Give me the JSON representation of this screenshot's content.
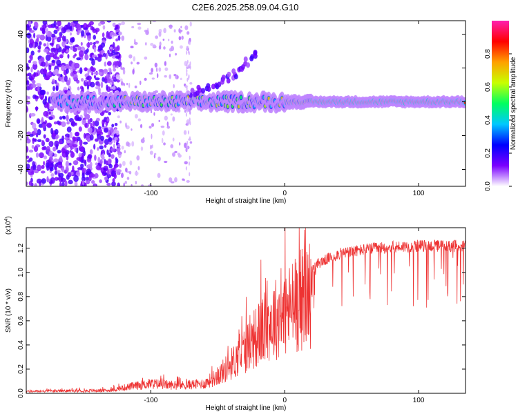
{
  "title": "C2E6.2025.258.09.04.G10",
  "charts": {
    "spectrogram": {
      "type": "heatmap",
      "xlabel": "Height of straight line (km)",
      "ylabel": "Frequency (Hz)",
      "xlim": [
        -193,
        135
      ],
      "ylim": [
        -50,
        48
      ],
      "xticks": [
        -100,
        0,
        100
      ],
      "yticks": [
        -40,
        -20,
        0,
        20,
        40
      ],
      "colorbar_label": "Normalized spectral amplitude",
      "colorbar_ticks": [
        0.0,
        0.2,
        0.4,
        0.6,
        0.8
      ],
      "colorbar_range": [
        0,
        1
      ],
      "colormap": [
        "#ffffff",
        "#7a00ff",
        "#0000ff",
        "#00c8ff",
        "#00ff60",
        "#c8ff00",
        "#ffa000",
        "#ff0000",
        "#ff20b0"
      ],
      "main_band_center_hz": 0,
      "secondary_branch": {
        "x": [
          -70,
          -50,
          -35,
          -20
        ],
        "y": [
          5,
          10,
          18,
          30
        ]
      }
    },
    "snr": {
      "type": "line",
      "xlabel": "Height of straight line (km)",
      "ylabel": "SNR (10 * v/v)",
      "scale_label": "(x10",
      "scale_exp": "4",
      "scale_close": ")",
      "xlim": [
        -193,
        135
      ],
      "ylim": [
        0,
        1.37
      ],
      "xticks": [
        -100,
        0,
        100
      ],
      "yticks": [
        0.0,
        0.2,
        0.4,
        0.6,
        0.8,
        1.0,
        1.2
      ],
      "line_color": "#ee3333",
      "envelope": {
        "x": [
          -193,
          -130,
          -120,
          -100,
          -80,
          -60,
          -50,
          -40,
          -30,
          -20,
          -10,
          0,
          10,
          20,
          25,
          40,
          60,
          80,
          100,
          135
        ],
        "y": [
          0.02,
          0.03,
          0.06,
          0.1,
          0.08,
          0.1,
          0.18,
          0.3,
          0.45,
          0.6,
          0.75,
          0.82,
          0.95,
          1.05,
          1.12,
          1.2,
          1.24,
          1.26,
          1.27,
          1.27
        ]
      }
    }
  }
}
